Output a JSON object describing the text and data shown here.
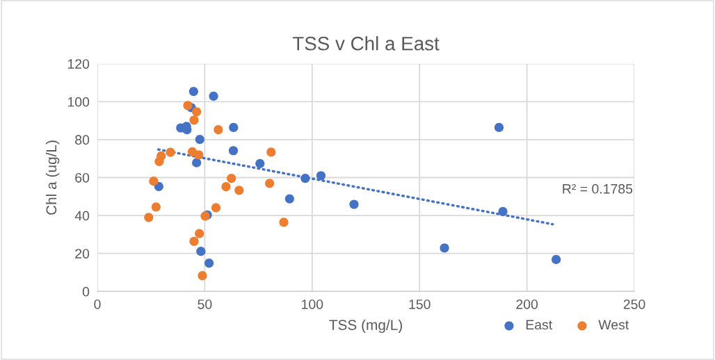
{
  "chart_data": {
    "type": "scatter",
    "title": "TSS v Chl a East",
    "xlabel": "TSS (mg/L)",
    "ylabel": "Chl a (ug/L)",
    "xlim": [
      0,
      250
    ],
    "xticks": [
      0,
      50,
      100,
      150,
      200,
      250
    ],
    "ylim": [
      0,
      120
    ],
    "yticks": [
      0,
      20,
      40,
      60,
      80,
      100,
      120
    ],
    "grid": true,
    "legend": "bottom right",
    "marker": "circle",
    "annotations": [
      "R² = 0.1785"
    ],
    "series": [
      {
        "name": "East",
        "color": "#4472c4",
        "x": [
          44.8,
          54.1,
          43.7,
          38.8,
          41.5,
          41.7,
          63.4,
          47.7,
          63.3,
          46.2,
          75.7,
          28.6,
          51.2,
          48.2,
          52.0,
          89.5,
          96.8,
          104.1,
          119.5,
          161.6,
          187.0,
          188.8,
          213.6
        ],
        "values": [
          105.4,
          102.9,
          96.9,
          86.2,
          87.0,
          85.2,
          86.4,
          80.1,
          74.2,
          67.8,
          67.4,
          55.3,
          40.3,
          21.1,
          14.9,
          48.8,
          59.6,
          61.0,
          45.9,
          22.9,
          86.4,
          42.1,
          16.8
        ]
      },
      {
        "name": "West",
        "color": "#ed7d31",
        "x": [
          42.1,
          46.2,
          45.0,
          56.3,
          34.0,
          29.7,
          28.8,
          44.2,
          47.2,
          80.9,
          62.4,
          59.9,
          66.0,
          80.2,
          26.2,
          27.3,
          23.9,
          55.2,
          50.2,
          86.8,
          47.5,
          45.0,
          48.9
        ],
        "values": [
          98.0,
          94.7,
          90.3,
          85.2,
          73.3,
          71.4,
          68.5,
          73.6,
          72.0,
          73.4,
          59.6,
          55.2,
          53.3,
          56.9,
          58.1,
          44.5,
          39.0,
          44.1,
          39.7,
          36.4,
          30.5,
          26.4,
          8.3
        ]
      },
      {
        "type": "line",
        "color": "#4472c4",
        "line_style": "dotted",
        "marker": "none",
        "x": [
          28.4,
          212.0
        ],
        "values": [
          74.8,
          35.4
        ]
      }
    ]
  }
}
